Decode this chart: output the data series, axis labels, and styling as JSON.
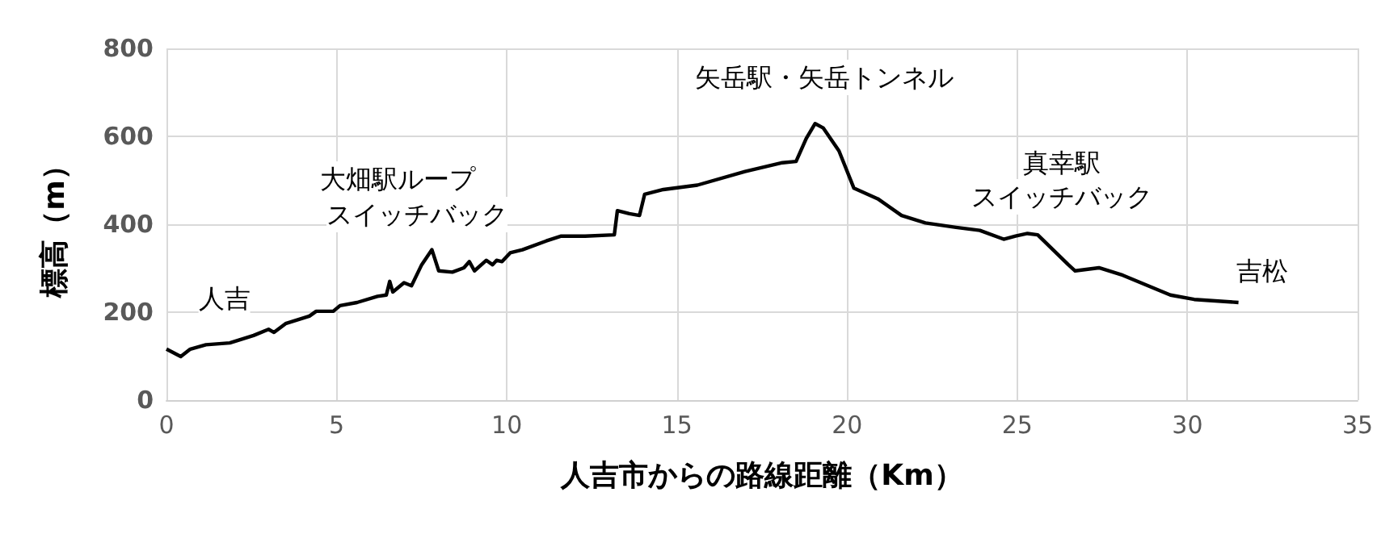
{
  "chart_data": {
    "type": "line",
    "xlabel": "人吉市からの路線距離（Km）",
    "ylabel": "標高（m）",
    "xlim": [
      0,
      35
    ],
    "xticks": [
      0,
      5,
      10,
      15,
      20,
      25,
      30,
      35
    ],
    "ylim": [
      0,
      800
    ],
    "yticks": [
      0,
      200,
      400,
      600,
      800
    ],
    "grid": true,
    "marker": "none",
    "line_style": "solid",
    "series": [
      {
        "color": "#000000",
        "x": [
          0,
          0.42,
          0.7,
          1.16,
          1.86,
          2.56,
          3.0,
          3.16,
          3.5,
          4.2,
          4.4,
          4.9,
          5.1,
          5.6,
          6.2,
          6.46,
          6.56,
          6.65,
          6.98,
          7.2,
          7.5,
          7.8,
          8.0,
          8.4,
          8.74,
          8.9,
          9.05,
          9.4,
          9.58,
          9.7,
          9.86,
          10.1,
          10.46,
          11.16,
          11.6,
          12.3,
          13.16,
          13.25,
          13.6,
          13.9,
          14.05,
          14.6,
          15.6,
          17,
          18.1,
          18.5,
          18.8,
          19.06,
          19.3,
          19.76,
          20.2,
          20.9,
          21.6,
          22.3,
          23.2,
          23.9,
          24.6,
          24.95,
          25.3,
          25.6,
          26.5,
          26.7,
          27.4,
          28.1,
          29.5,
          30.2,
          31.5
        ],
        "values": [
          116,
          99,
          116,
          126,
          130,
          147,
          161,
          154,
          174,
          191,
          202,
          202,
          215,
          222,
          236,
          239,
          270,
          246,
          267,
          260,
          308,
          342,
          294,
          291,
          301,
          315,
          294,
          318,
          308,
          318,
          315,
          335,
          342,
          362,
          373,
          373,
          376,
          431,
          424,
          420,
          468,
          479,
          489,
          520,
          540,
          543,
          595,
          629,
          619,
          567,
          482,
          458,
          420,
          403,
          393,
          386,
          366,
          373,
          379,
          376,
          308,
          294,
          301,
          284,
          239,
          229,
          222
        ]
      }
    ],
    "annotations": [
      {
        "text": "人吉",
        "x": 1.7,
        "y": 232
      },
      "大畑駅ループ",
      "スイッチバック",
      "矢岳駅・矢岳トンネル",
      "真幸駅",
      "スイッチバック",
      {
        "text": "吉松",
        "x": 32.2,
        "y": 294
      }
    ]
  }
}
